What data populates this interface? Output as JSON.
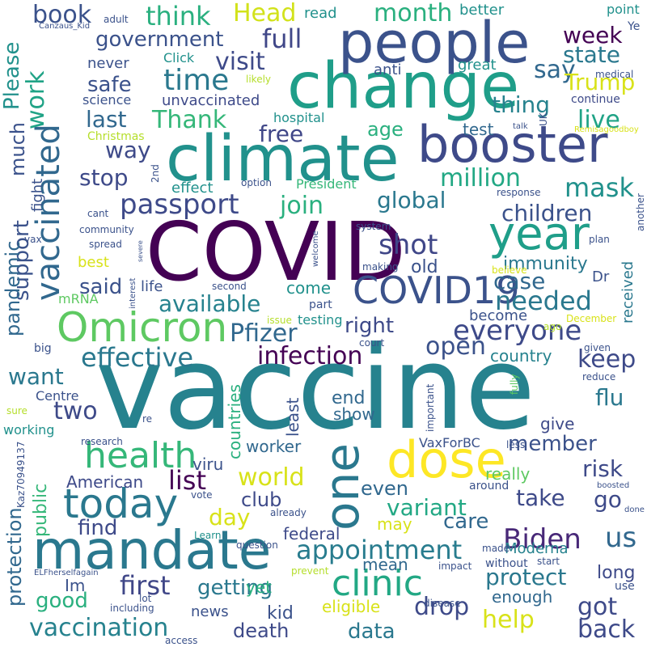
{
  "words": [
    "vaccine",
    "COVID",
    "climate",
    "change",
    "people",
    "booster",
    "year",
    "mandate",
    "dose",
    "one",
    "Omicron",
    "COVID19",
    "health",
    "today",
    "vaccinated",
    "clinic",
    "Biden",
    "passport",
    "shot",
    "everyone",
    "appointment",
    "effective",
    "work",
    "Pfizer",
    "infection",
    "first",
    "government",
    "time",
    "think",
    "Head",
    "month",
    "book",
    "full",
    "visit",
    "week",
    "state",
    "say",
    "Trump",
    "Please",
    "safe",
    "unvaccinated",
    "thing",
    "much",
    "Thank",
    "last",
    "live",
    "free",
    "age",
    "test",
    "way",
    "million",
    "global",
    "stop",
    "mask",
    "join",
    "children",
    "support",
    "pandemic",
    "said",
    "available",
    "right",
    "needed",
    "case",
    "immunity",
    "come",
    "old",
    "open",
    "keep",
    "flu",
    "country",
    "want",
    "two",
    "end",
    "show",
    "countries",
    "least",
    "protection",
    "public",
    "viru",
    "world",
    "list",
    "member",
    "risk",
    "even",
    "club",
    "variant",
    "take",
    "go",
    "find",
    "day",
    "care",
    "us",
    "federal",
    "may",
    "getting",
    "protect",
    "long",
    "good",
    "Im",
    "mean",
    "yet",
    "kid",
    "death",
    "data",
    "drop",
    "help",
    "got",
    "back",
    "vaccination",
    "eligible",
    "enough",
    "news",
    "American",
    "worker",
    "give",
    "really",
    "Moderna",
    "science",
    "hospital",
    "Christmas",
    "never",
    "Click",
    "anti",
    "great",
    "better",
    "point",
    "read",
    "adult",
    "Canzaus_Kid",
    "Ye",
    "medical",
    "likely",
    "continue",
    "talk",
    "UK",
    "Remisagoodboy",
    "2nd",
    "option",
    "President",
    "response",
    "effect",
    "fight",
    "cant",
    "community",
    "spread",
    "plan",
    "another",
    "vax",
    "best",
    "mRNA",
    "life",
    "second",
    "making",
    "interest",
    "severe",
    "welcome",
    "Dr",
    "received",
    "believe",
    "part",
    "testing",
    "issue",
    "become",
    "December",
    "ago",
    "big",
    "court",
    "given",
    "Centre",
    "fully",
    "reduce",
    "important",
    "sure",
    "re",
    "working",
    "research",
    "VaxForBC",
    "less",
    "around",
    "boosted",
    "Kaz70949137",
    "vote",
    "already",
    "Learn",
    "question",
    "made",
    "done",
    "ELFherselfagain",
    "lot",
    "prevent",
    "impact",
    "without",
    "start",
    "use",
    "including",
    "disease",
    "system",
    "access"
  ]
}
